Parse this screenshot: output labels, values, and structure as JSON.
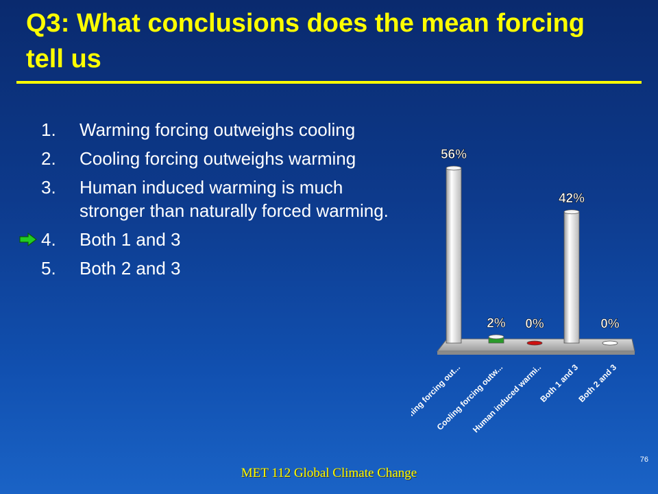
{
  "slide": {
    "title": "Q3:  What conclusions does the mean forcing tell us",
    "footer": "MET 112 Global Climate Change",
    "page_number": "76"
  },
  "options": [
    {
      "num": "1.",
      "text": "Warming forcing outweighs cooling",
      "correct": false
    },
    {
      "num": "2.",
      "text": "Cooling forcing outweighs warming",
      "correct": false
    },
    {
      "num": "3.",
      "text": "Human induced warming is much stronger than naturally forced warming.",
      "correct": false
    },
    {
      "num": "4.",
      "text": "Both 1 and 3",
      "correct": true
    },
    {
      "num": "5.",
      "text": "Both 2 and 3",
      "correct": false
    }
  ],
  "correct_marker_icon": "right-arrow-icon",
  "colors": {
    "title": "#ffff00",
    "marker": "#22cc22",
    "bar_warming": "#ffffff",
    "bar_cooling": "#2a9a2a",
    "bar_human": "#cc1111",
    "bar_both13": "#ffffff",
    "bar_both23": "#ffffff"
  },
  "chart_data": {
    "type": "bar",
    "categories": [
      "Warming forcing out...",
      "Cooling forcing outw...",
      "Human induced warmi..",
      "Both 1 and 3",
      "Both 2 and 3"
    ],
    "values": [
      56,
      2,
      0,
      42,
      0
    ],
    "data_labels": [
      "56%",
      "2%",
      "0%",
      "42%",
      "0%"
    ],
    "title": "",
    "xlabel": "",
    "ylabel": "",
    "ylim": [
      0,
      56
    ],
    "grid": false
  }
}
